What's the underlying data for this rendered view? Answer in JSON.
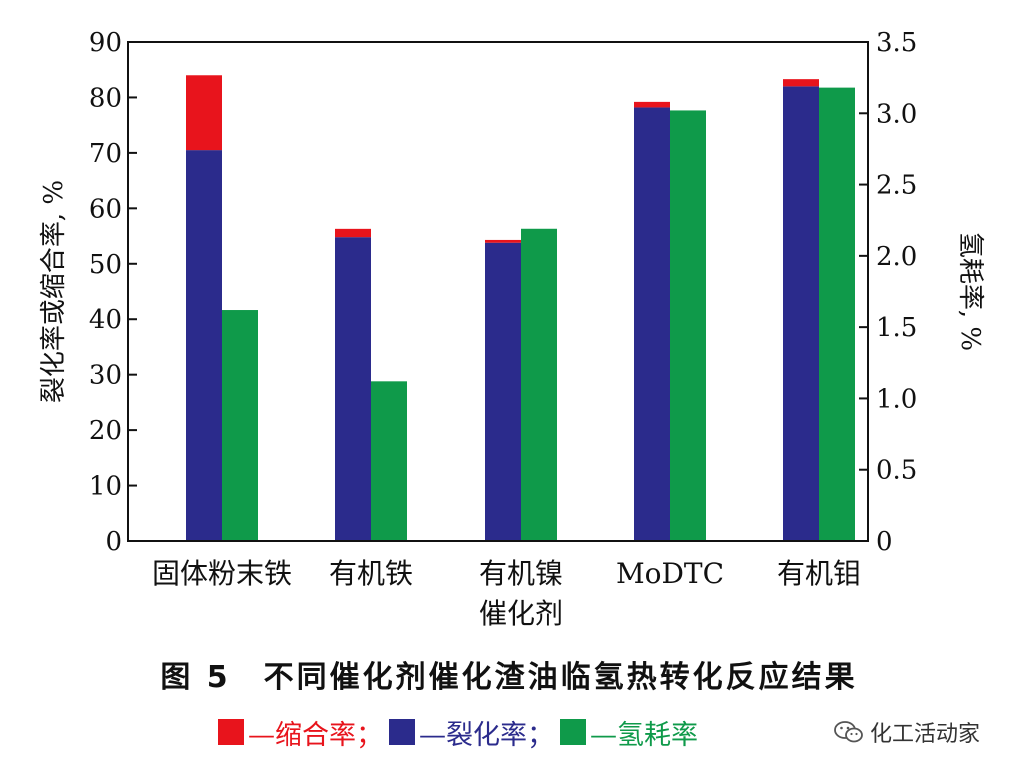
{
  "chart_data": {
    "type": "bar",
    "categories": [
      [
        "固体粉末铁"
      ],
      [
        "有机铁"
      ],
      [
        "有机镍",
        "催化剂"
      ],
      [
        "MoDTC"
      ],
      [
        "有机钼"
      ]
    ],
    "ylabel_left": "裂化率或缩合率, %",
    "ylabel_right": "氢耗率, %",
    "ylim_left": [
      0,
      90
    ],
    "ylim_right": [
      0,
      3.5
    ],
    "yticks_left": [
      "0",
      "10",
      "20",
      "30",
      "40",
      "50",
      "60",
      "70",
      "80",
      "90"
    ],
    "yticks_right": [
      "0",
      "0.5",
      "1.0",
      "1.5",
      "2.0",
      "2.5",
      "3.0",
      "3.5"
    ],
    "series": [
      {
        "name": "缩合率",
        "axis": "left",
        "stacked_on": "裂化率",
        "color": "#e8141c",
        "values": [
          13.5,
          1.5,
          0.5,
          1.0,
          1.3
        ]
      },
      {
        "name": "裂化率",
        "axis": "left",
        "color": "#2b2b8c",
        "values": [
          70.5,
          54.8,
          53.8,
          78.2,
          82.0
        ]
      },
      {
        "name": "氢耗率",
        "axis": "right",
        "color": "#0f9a4a",
        "values": [
          1.62,
          1.12,
          2.19,
          3.02,
          3.18
        ]
      }
    ]
  },
  "figure": {
    "title": "图 5　不同催化剂催化渣油临氢热转化反应结果"
  },
  "legend": [
    {
      "label": "—缩合率；",
      "color": "#e8141c",
      "text_color": "#e8141c"
    },
    {
      "label": "—裂化率；",
      "color": "#2b2b8c",
      "text_color": "#2b2b8c"
    },
    {
      "label": "—氢耗率",
      "color": "#0f9a4a",
      "text_color": "#0f9a4a"
    }
  ],
  "watermark": {
    "label": "化工活动家",
    "icon": "wechat-icon"
  }
}
